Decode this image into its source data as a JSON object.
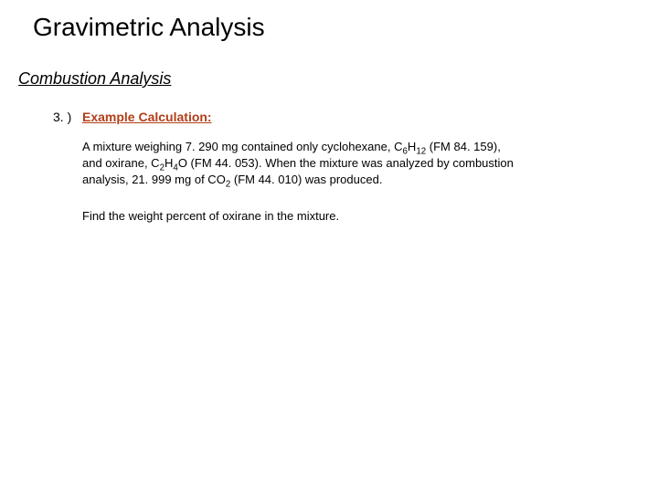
{
  "colors": {
    "background": "#ffffff",
    "text_primary": "#000000",
    "heading_accent": "#b23e19"
  },
  "typography": {
    "title_fontsize": 28,
    "subtitle_fontsize": 18,
    "body_fontsize": 13,
    "item_number_fontsize": 14,
    "item_heading_fontsize": 14,
    "font_family": "Arial, Helvetica, sans-serif"
  },
  "title": "Gravimetric Analysis",
  "subtitle": "Combustion Analysis",
  "example": {
    "number": "3. )",
    "heading": "Example Calculation:",
    "problem_line1": "A mixture weighing 7. 290 mg contained only cyclohexane, C",
    "problem_sub1": "6",
    "problem_mid1": "H",
    "problem_sub2": "12",
    "problem_mid2": " (FM 84. 159),",
    "problem_line2a": "and oxirane, C",
    "problem_sub3": "2",
    "problem_mid3": "H",
    "problem_sub4": "4",
    "problem_mid4": "O (FM 44. 053). When the mixture was analyzed by combustion",
    "problem_line3a": "analysis, 21. 999 mg of CO",
    "problem_sub5": "2",
    "problem_mid5": " (FM 44. 010) was produced.",
    "question": "Find the weight percent of oxirane in the mixture."
  }
}
